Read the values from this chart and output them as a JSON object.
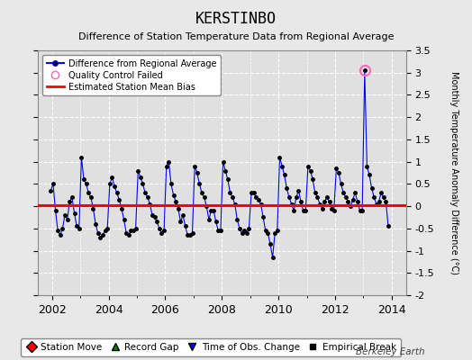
{
  "title": "KERSTINBO",
  "subtitle": "Difference of Station Temperature Data from Regional Average",
  "ylabel_right": "Monthly Temperature Anomaly Difference (°C)",
  "bias_value": 0.03,
  "ylim": [
    -2.0,
    3.5
  ],
  "xlim": [
    2001.5,
    2014.5
  ],
  "xticks": [
    2002,
    2004,
    2006,
    2008,
    2010,
    2012,
    2014
  ],
  "yticks_right": [
    -2.0,
    -1.5,
    -1.0,
    -0.5,
    0.0,
    0.5,
    1.0,
    1.5,
    2.0,
    2.5,
    3.0,
    3.5
  ],
  "background_color": "#e8e8e8",
  "plot_bg_color": "#e0e0e0",
  "grid_color": "#ffffff",
  "line_color": "#0000ff",
  "marker_color": "#000000",
  "bias_color": "#ff0000",
  "qc_fail_x": 2013.042,
  "qc_fail_y": 3.05,
  "watermark": "Berkeley Earth",
  "times": [
    2001.958,
    2002.042,
    2002.125,
    2002.208,
    2002.292,
    2002.375,
    2002.458,
    2002.542,
    2002.625,
    2002.708,
    2002.792,
    2002.875,
    2002.958,
    2003.042,
    2003.125,
    2003.208,
    2003.292,
    2003.375,
    2003.458,
    2003.542,
    2003.625,
    2003.708,
    2003.792,
    2003.875,
    2003.958,
    2004.042,
    2004.125,
    2004.208,
    2004.292,
    2004.375,
    2004.458,
    2004.542,
    2004.625,
    2004.708,
    2004.792,
    2004.875,
    2004.958,
    2005.042,
    2005.125,
    2005.208,
    2005.292,
    2005.375,
    2005.458,
    2005.542,
    2005.625,
    2005.708,
    2005.792,
    2005.875,
    2005.958,
    2006.042,
    2006.125,
    2006.208,
    2006.292,
    2006.375,
    2006.458,
    2006.542,
    2006.625,
    2006.708,
    2006.792,
    2006.875,
    2006.958,
    2007.042,
    2007.125,
    2007.208,
    2007.292,
    2007.375,
    2007.458,
    2007.542,
    2007.625,
    2007.708,
    2007.792,
    2007.875,
    2007.958,
    2008.042,
    2008.125,
    2008.208,
    2008.292,
    2008.375,
    2008.458,
    2008.542,
    2008.625,
    2008.708,
    2008.792,
    2008.875,
    2008.958,
    2009.042,
    2009.125,
    2009.208,
    2009.292,
    2009.375,
    2009.458,
    2009.542,
    2009.625,
    2009.708,
    2009.792,
    2009.875,
    2009.958,
    2010.042,
    2010.125,
    2010.208,
    2010.292,
    2010.375,
    2010.458,
    2010.542,
    2010.625,
    2010.708,
    2010.792,
    2010.875,
    2010.958,
    2011.042,
    2011.125,
    2011.208,
    2011.292,
    2011.375,
    2011.458,
    2011.542,
    2011.625,
    2011.708,
    2011.792,
    2011.875,
    2011.958,
    2012.042,
    2012.125,
    2012.208,
    2012.292,
    2012.375,
    2012.458,
    2012.542,
    2012.625,
    2012.708,
    2012.792,
    2012.875,
    2012.958,
    2013.042,
    2013.125,
    2013.208,
    2013.292,
    2013.375,
    2013.458,
    2013.542,
    2013.625,
    2013.708,
    2013.792,
    2013.875
  ],
  "values": [
    0.35,
    0.5,
    -0.1,
    -0.55,
    -0.65,
    -0.5,
    -0.2,
    -0.3,
    0.1,
    0.2,
    -0.15,
    -0.45,
    -0.5,
    1.1,
    0.6,
    0.5,
    0.3,
    0.2,
    -0.05,
    -0.4,
    -0.6,
    -0.7,
    -0.65,
    -0.55,
    -0.5,
    0.5,
    0.65,
    0.45,
    0.3,
    0.15,
    -0.05,
    -0.3,
    -0.6,
    -0.65,
    -0.55,
    -0.55,
    -0.5,
    0.8,
    0.65,
    0.5,
    0.3,
    0.2,
    0.05,
    -0.2,
    -0.25,
    -0.35,
    -0.5,
    -0.6,
    -0.55,
    0.9,
    1.0,
    0.5,
    0.25,
    0.1,
    -0.05,
    -0.35,
    -0.2,
    -0.45,
    -0.65,
    -0.65,
    -0.6,
    0.9,
    0.75,
    0.5,
    0.3,
    0.2,
    0.0,
    -0.3,
    -0.1,
    -0.1,
    -0.35,
    -0.55,
    -0.55,
    1.0,
    0.8,
    0.6,
    0.3,
    0.2,
    0.05,
    -0.3,
    -0.5,
    -0.6,
    -0.55,
    -0.6,
    -0.5,
    0.3,
    0.3,
    0.2,
    0.15,
    0.05,
    -0.25,
    -0.55,
    -0.6,
    -0.85,
    -1.15,
    -0.6,
    -0.55,
    1.1,
    0.9,
    0.7,
    0.4,
    0.2,
    0.05,
    -0.1,
    0.2,
    0.35,
    0.1,
    -0.1,
    -0.1,
    0.9,
    0.8,
    0.6,
    0.3,
    0.2,
    0.05,
    -0.05,
    0.1,
    0.2,
    0.1,
    -0.05,
    -0.1,
    0.85,
    0.75,
    0.5,
    0.3,
    0.2,
    0.1,
    0.0,
    0.15,
    0.3,
    0.1,
    -0.1,
    -0.1,
    3.05,
    0.9,
    0.7,
    0.4,
    0.2,
    0.05,
    0.1,
    0.3,
    0.2,
    0.1,
    -0.45
  ]
}
